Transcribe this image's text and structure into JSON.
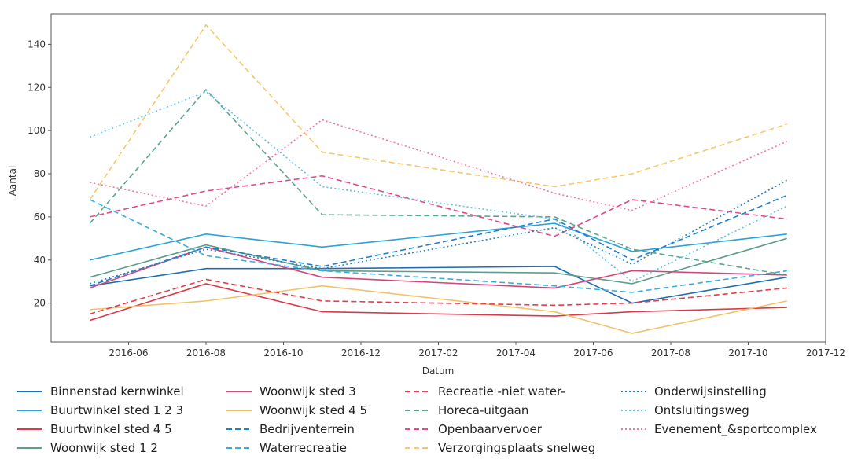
{
  "chart_data": {
    "type": "line",
    "ylabel": "Aantal",
    "xlabel": "Datum",
    "x": [
      "2016-05",
      "2016-08",
      "2016-11",
      "2017-05",
      "2017-07",
      "2017-11"
    ],
    "xlim": [
      "2016-04",
      "2017-12"
    ],
    "xticks": [
      "2016-06",
      "2016-08",
      "2016-10",
      "2016-12",
      "2017-02",
      "2017-04",
      "2017-06",
      "2017-08",
      "2017-10",
      "2017-12"
    ],
    "ylim": [
      2,
      154
    ],
    "yticks": [
      20,
      40,
      60,
      80,
      100,
      120,
      140
    ],
    "series": [
      {
        "name": "Binnenstad kernwinkel",
        "color": "#1f6fb0",
        "style": "solid",
        "values": [
          28,
          36,
          36,
          37,
          20,
          32
        ]
      },
      {
        "name": "Buurtwinkel sted 1 2 3",
        "color": "#2aa3d6",
        "style": "solid",
        "values": [
          40,
          52,
          46,
          57,
          44,
          52
        ]
      },
      {
        "name": "Buurtwinkel sted 4 5",
        "color": "#d93a4a",
        "style": "solid",
        "values": [
          12,
          29,
          16,
          14,
          16,
          18
        ]
      },
      {
        "name": "Woonwijk sted 1 2",
        "color": "#5f9e8c",
        "style": "solid",
        "values": [
          32,
          47,
          35,
          34,
          29,
          50
        ]
      },
      {
        "name": "Woonwijk sted 3",
        "color": "#d6457a",
        "style": "solid",
        "values": [
          27,
          46,
          32,
          27,
          35,
          33
        ]
      },
      {
        "name": "Woonwijk sted 4 5",
        "color": "#f0c36a",
        "style": "solid",
        "values": [
          17,
          21,
          28,
          16,
          6,
          21
        ]
      },
      {
        "name": "Bedrijventerrein",
        "color": "#1f80c8",
        "style": "dashed",
        "values": [
          28,
          46,
          37,
          59,
          40,
          70
        ]
      },
      {
        "name": "Waterrecreatie",
        "color": "#3aaee0",
        "style": "dashed",
        "values": [
          68,
          42,
          35,
          28,
          25,
          35
        ]
      },
      {
        "name": "Recreatie -niet water-",
        "color": "#e0404f",
        "style": "dashed",
        "values": [
          15,
          31,
          21,
          19,
          20,
          27
        ]
      },
      {
        "name": "Horeca-uitgaan",
        "color": "#5aa68e",
        "style": "dashed",
        "values": [
          57,
          119,
          61,
          60,
          45,
          33
        ]
      },
      {
        "name": "Openbaarvervoer",
        "color": "#df4a8a",
        "style": "dashed",
        "values": [
          60,
          72,
          79,
          51,
          68,
          59
        ]
      },
      {
        "name": "Verzorgingsplaats snelweg",
        "color": "#f5c86e",
        "style": "dashed",
        "values": [
          68,
          149,
          90,
          74,
          80,
          103
        ]
      },
      {
        "name": "Onderwijsinstelling",
        "color": "#2a7fc0",
        "style": "dotted",
        "values": [
          29,
          45,
          36,
          55,
          38,
          77
        ]
      },
      {
        "name": "Ontsluitingsweg",
        "color": "#5cc0e8",
        "style": "dotted",
        "values": [
          97,
          118,
          74,
          59,
          30,
          65
        ]
      },
      {
        "name": "Evenement_&sportcomplex",
        "color": "#f07a9a",
        "style": "dotted",
        "values": [
          76,
          65,
          105,
          71,
          63,
          95
        ]
      }
    ]
  }
}
